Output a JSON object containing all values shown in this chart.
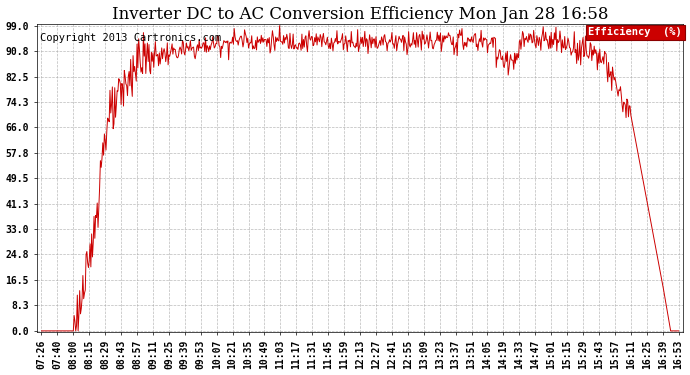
{
  "title": "Inverter DC to AC Conversion Efficiency Mon Jan 28 16:58",
  "copyright": "Copyright 2013 Cartronics.com",
  "legend_label": "Efficiency  (%)",
  "legend_bg": "#cc0000",
  "legend_text_color": "#ffffff",
  "line_color": "#cc0000",
  "bg_color": "#ffffff",
  "grid_color": "#aaaaaa",
  "yticks": [
    0.0,
    8.3,
    16.5,
    24.8,
    33.0,
    41.3,
    49.5,
    57.8,
    66.0,
    74.3,
    82.5,
    90.8,
    99.0
  ],
  "xtick_labels": [
    "07:26",
    "07:40",
    "08:00",
    "08:15",
    "08:29",
    "08:43",
    "08:57",
    "09:11",
    "09:25",
    "09:39",
    "09:53",
    "10:07",
    "10:21",
    "10:35",
    "10:49",
    "11:03",
    "11:17",
    "11:31",
    "11:45",
    "11:59",
    "12:13",
    "12:27",
    "12:41",
    "12:55",
    "13:09",
    "13:23",
    "13:37",
    "13:51",
    "14:05",
    "14:19",
    "14:33",
    "14:47",
    "15:01",
    "15:15",
    "15:29",
    "15:43",
    "15:57",
    "16:11",
    "16:25",
    "16:39",
    "16:53"
  ],
  "title_fontsize": 12,
  "copyright_fontsize": 7.5,
  "tick_fontsize": 7,
  "figwidth": 6.9,
  "figheight": 3.75,
  "dpi": 100
}
